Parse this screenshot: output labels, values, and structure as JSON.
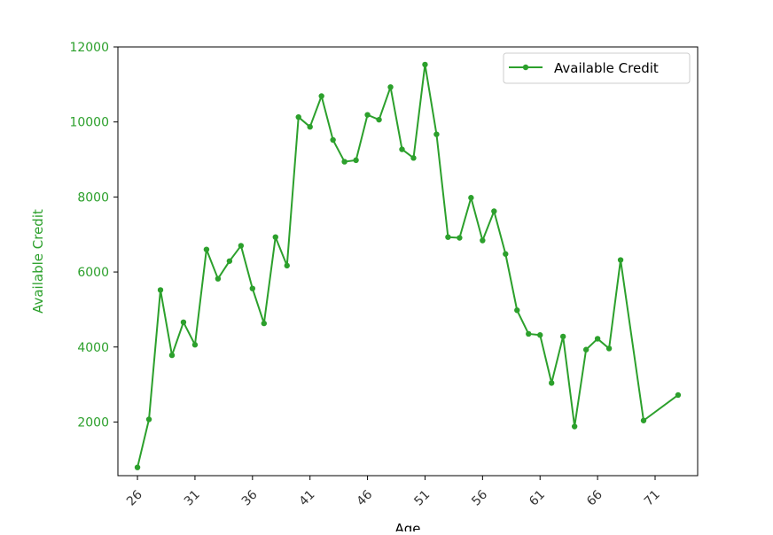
{
  "colors": {
    "series": "#2ca02c",
    "axis": "#000000",
    "tick_text": "#333333",
    "legend_border": "#cccccc"
  },
  "chart_data": {
    "type": "line",
    "xlabel": "Age",
    "ylabel": "Available Credit",
    "xlim": [
      24.3,
      74.7
    ],
    "ylim": [
      570,
      12000
    ],
    "x_ticks": [
      26,
      31,
      36,
      41,
      46,
      51,
      56,
      61,
      66,
      71
    ],
    "x_tick_labels": [
      "26",
      "31",
      "36",
      "41",
      "46",
      "51",
      "56",
      "61",
      "66",
      "71"
    ],
    "y_ticks": [
      2000,
      4000,
      6000,
      8000,
      10000,
      12000
    ],
    "y_tick_labels": [
      "2000",
      "4000",
      "6000",
      "8000",
      "10000",
      "12000"
    ],
    "grid": false,
    "legend_position": "top-right",
    "series": [
      {
        "name": "Available Credit",
        "marker": "circle",
        "x": [
          26,
          27,
          28,
          29,
          30,
          31,
          32,
          33,
          34,
          35,
          36,
          37,
          38,
          39,
          40,
          41,
          42,
          43,
          44,
          45,
          46,
          47,
          48,
          49,
          50,
          51,
          52,
          53,
          54,
          55,
          56,
          57,
          58,
          59,
          60,
          61,
          62,
          63,
          64,
          65,
          66,
          67,
          68,
          70,
          73
        ],
        "y": [
          790,
          2070,
          5520,
          3780,
          4660,
          4060,
          6600,
          5820,
          6290,
          6700,
          5560,
          4630,
          6930,
          6170,
          10130,
          9870,
          10690,
          9520,
          8940,
          8980,
          10190,
          10060,
          10930,
          9270,
          9040,
          11530,
          9670,
          6930,
          6910,
          7980,
          6840,
          7620,
          6480,
          4980,
          4350,
          4320,
          3040,
          4280,
          1880,
          3930,
          4220,
          3960,
          6320,
          2040,
          2720
        ]
      }
    ]
  }
}
